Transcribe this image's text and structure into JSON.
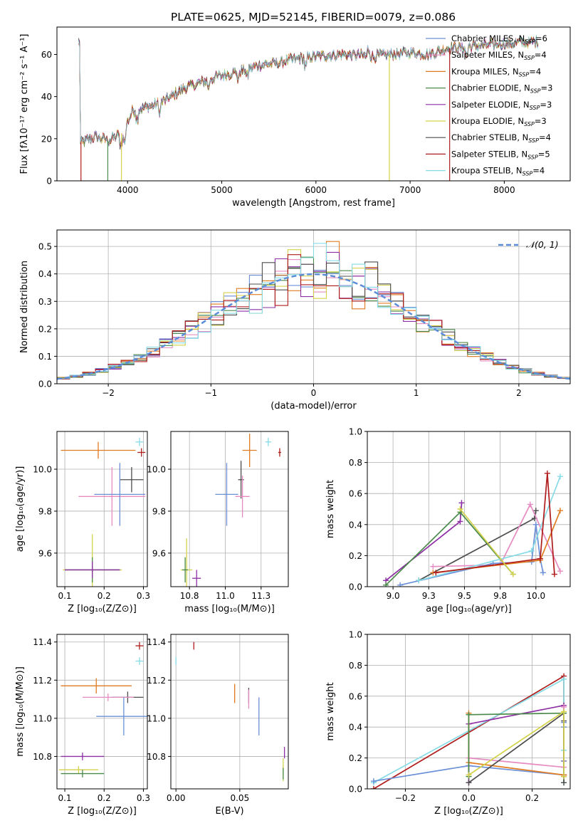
{
  "figure": {
    "title": "PLATE=0625, MJD=52145, FIBERID=0079, z=0.086"
  },
  "chart_data": [
    {
      "id": "spectrum",
      "type": "line",
      "xlabel": "wavelength [Angstrom, rest frame]",
      "ylabel": "Flux [fλ10⁻¹⁷ erg cm⁻² s⁻¹ A⁻¹]",
      "xlim": [
        3250,
        8700
      ],
      "ylim": [
        0,
        73
      ],
      "xticks": [
        4000,
        5000,
        6000,
        7000,
        8000
      ],
      "yticks": [
        0,
        20,
        40,
        60
      ],
      "grid": false,
      "legend_position": "right",
      "continuum": [
        [
          3500,
          18
        ],
        [
          3650,
          21
        ],
        [
          3800,
          19
        ],
        [
          3950,
          23
        ],
        [
          4050,
          33
        ],
        [
          4200,
          35
        ],
        [
          4400,
          38
        ],
        [
          4600,
          44
        ],
        [
          4800,
          47
        ],
        [
          5000,
          50
        ],
        [
          5200,
          52
        ],
        [
          5400,
          55
        ],
        [
          5600,
          56
        ],
        [
          5800,
          58
        ],
        [
          6000,
          59
        ],
        [
          6200,
          60
        ],
        [
          6400,
          60
        ],
        [
          6600,
          59
        ],
        [
          6800,
          60
        ],
        [
          7000,
          61
        ],
        [
          7200,
          60
        ],
        [
          7400,
          63
        ],
        [
          7700,
          64
        ],
        [
          8000,
          65
        ],
        [
          8300,
          66
        ]
      ],
      "series": [
        {
          "name": "Chabrier MILES, N",
          "sub": "SSP",
          "suffix": "=6",
          "color": "#6b8fd8"
        },
        {
          "name": "Salpeter MILES, N",
          "sub": "SSP",
          "suffix": "=4",
          "color": "#e68bc1"
        },
        {
          "name": "Kroupa MILES, N",
          "sub": "SSP",
          "suffix": "=4",
          "color": "#e07b20"
        },
        {
          "name": "Chabrier ELODIE, N",
          "sub": "SSP",
          "suffix": "=3",
          "color": "#4a8a4a"
        },
        {
          "name": "Salpeter ELODIE, N",
          "sub": "SSP",
          "suffix": "=3",
          "color": "#8e2fa6"
        },
        {
          "name": "Kroupa ELODIE, N",
          "sub": "SSP",
          "suffix": "=3",
          "color": "#d4d24a"
        },
        {
          "name": "Chabrier STELIB, N",
          "sub": "SSP",
          "suffix": "=4",
          "color": "#4d4d4d"
        },
        {
          "name": "Salpeter STELIB, N",
          "sub": "SSP",
          "suffix": "=5",
          "color": "#b01c1c"
        },
        {
          "name": "Kroupa STELIB, N",
          "sub": "SSP",
          "suffix": "=4",
          "color": "#86dbe6"
        }
      ]
    },
    {
      "id": "residuals",
      "type": "bar",
      "xlabel": "(data-model)/error",
      "ylabel": "Normed distribution",
      "xlim": [
        -2.5,
        2.5
      ],
      "ylim": [
        0,
        0.56
      ],
      "xticks": [
        -2,
        -1,
        0,
        1,
        2
      ],
      "yticks": [
        0.0,
        0.1,
        0.2,
        0.3,
        0.4,
        0.5
      ],
      "grid": true,
      "legend_position": "top-right",
      "legend": "𝒩(0, 1)",
      "reference_curve": "normal(0,1)",
      "bin_width": 0.125
    },
    {
      "id": "age_vs_Z",
      "type": "scatter",
      "xlabel": "Z [log₁₀(Z/Z⊙)]",
      "ylabel": "age  [log₁₀(age/yr)]",
      "xlim": [
        0.08,
        0.31
      ],
      "ylim": [
        9.44,
        10.18
      ],
      "xticks": [
        0.1,
        0.2,
        0.3
      ],
      "yticks": [
        9.6,
        9.8,
        10.0
      ],
      "grid": true,
      "points": [
        {
          "color": "#86dbe6",
          "x": 0.29,
          "y": 10.13,
          "xerr": 0.01,
          "yerr": 0.02
        },
        {
          "color": "#e07b20",
          "x": 0.185,
          "y": 10.09,
          "xerr": 0.095,
          "yerr": 0.04
        },
        {
          "color": "#b01c1c",
          "x": 0.295,
          "y": 10.08,
          "xerr": 0.01,
          "yerr": 0.02
        },
        {
          "color": "#4d4d4d",
          "x": 0.27,
          "y": 9.95,
          "xerr": 0.03,
          "yerr": 0.06
        },
        {
          "color": "#e68bc1",
          "x": 0.22,
          "y": 9.87,
          "xerr": 0.085,
          "yerr": 0.14
        },
        {
          "color": "#6b8fd8",
          "x": 0.24,
          "y": 9.88,
          "xerr": 0.065,
          "yerr": 0.15
        },
        {
          "color": "#d4d24a",
          "x": 0.17,
          "y": 9.52,
          "xerr": 0.075,
          "yerr": 0.17
        },
        {
          "color": "#4a8a4a",
          "x": 0.17,
          "y": 9.52,
          "xerr": 0.07,
          "yerr": 0.06
        },
        {
          "color": "#8e2fa6",
          "x": 0.17,
          "y": 9.52,
          "xerr": 0.07,
          "yerr": 0.04
        }
      ]
    },
    {
      "id": "age_vs_mass",
      "type": "scatter",
      "xlabel": "mass [log₁₀(M/M⊙)]",
      "ylabel": "",
      "xlim": [
        10.62,
        11.44
      ],
      "ylim": [
        9.44,
        10.18
      ],
      "xticks": [
        10.75,
        11.0,
        11.25
      ],
      "yticks": [
        9.6,
        9.8,
        10.0
      ],
      "grid": true,
      "points": [
        {
          "color": "#86dbe6",
          "x": 11.3,
          "y": 10.13,
          "xerr": 0.02,
          "yerr": 0.02
        },
        {
          "color": "#e07b20",
          "x": 11.17,
          "y": 10.09,
          "xerr": 0.05,
          "yerr": 0.08
        },
        {
          "color": "#b01c1c",
          "x": 11.38,
          "y": 10.08,
          "xerr": 0.01,
          "yerr": 0.02
        },
        {
          "color": "#4d4d4d",
          "x": 11.11,
          "y": 9.95,
          "xerr": 0.02,
          "yerr": 0.09
        },
        {
          "color": "#e68bc1",
          "x": 11.12,
          "y": 9.87,
          "xerr": 0.05,
          "yerr": 0.1
        },
        {
          "color": "#6b8fd8",
          "x": 11.01,
          "y": 9.88,
          "xerr": 0.08,
          "yerr": 0.15
        },
        {
          "color": "#d4d24a",
          "x": 10.73,
          "y": 9.52,
          "xerr": 0.04,
          "yerr": 0.15
        },
        {
          "color": "#4a8a4a",
          "x": 10.72,
          "y": 9.52,
          "xerr": 0.02,
          "yerr": 0.06
        },
        {
          "color": "#8e2fa6",
          "x": 10.8,
          "y": 9.48,
          "xerr": 0.03,
          "yerr": 0.04
        }
      ]
    },
    {
      "id": "mass_weight_vs_age",
      "type": "line",
      "xlabel": "age  [log₁₀(age/yr)]",
      "ylabel": "mass weight",
      "xlim": [
        8.82,
        10.24
      ],
      "ylim": [
        0,
        1
      ],
      "xticks": [
        9.0,
        9.25,
        9.5,
        9.75,
        10.0
      ],
      "yticks": [
        0.0,
        0.2,
        0.4,
        0.6,
        0.8,
        1.0
      ],
      "grid": true,
      "series": [
        {
          "color": "#8e2fa6",
          "x": [
            8.95,
            9.47,
            9.48
          ],
          "y": [
            0.04,
            0.42,
            0.54
          ]
        },
        {
          "color": "#4a8a4a",
          "x": [
            8.95,
            9.47,
            9.84
          ],
          "y": [
            0.01,
            0.48,
            0.08
          ]
        },
        {
          "color": "#4d4d4d",
          "x": [
            9.18,
            9.99,
            10.0
          ],
          "y": [
            0.04,
            0.44,
            0.49
          ]
        },
        {
          "color": "#e68bc1",
          "x": [
            9.28,
            9.75,
            9.96,
            10.17
          ],
          "y": [
            0.13,
            0.14,
            0.53,
            0.1
          ]
        },
        {
          "color": "#6b8fd8",
          "x": [
            9.05,
            9.7,
            9.97,
            10.0,
            10.03,
            10.05
          ],
          "y": [
            0.01,
            0.15,
            0.16,
            0.4,
            0.18,
            0.09
          ]
        },
        {
          "color": "#86dbe6",
          "x": [
            9.18,
            9.97,
            10.17
          ],
          "y": [
            0.04,
            0.23,
            0.71
          ]
        },
        {
          "color": "#e07b20",
          "x": [
            9.28,
            10.03,
            10.17
          ],
          "y": [
            0.09,
            0.17,
            0.49
          ]
        },
        {
          "color": "#b01c1c",
          "x": [
            9.3,
            10.03,
            10.08,
            10.13
          ],
          "y": [
            0.09,
            0.18,
            0.73,
            0.08
          ]
        },
        {
          "color": "#d4d24a",
          "x": [
            9.47,
            9.84
          ],
          "y": [
            0.5,
            0.08
          ]
        }
      ]
    },
    {
      "id": "mass_vs_Z",
      "type": "scatter",
      "xlabel": "Z [log₁₀(Z/Z⊙)]",
      "ylabel": "mass [log₁₀(M/M⊙)]",
      "xlim": [
        0.08,
        0.31
      ],
      "ylim": [
        10.63,
        11.44
      ],
      "xticks": [
        0.1,
        0.2,
        0.3
      ],
      "yticks": [
        10.8,
        11.0,
        11.2,
        11.4
      ],
      "grid": true,
      "points": [
        {
          "color": "#b01c1c",
          "x": 0.29,
          "y": 11.38,
          "xerr": 0.01,
          "yerr": 0.02
        },
        {
          "color": "#86dbe6",
          "x": 0.29,
          "y": 11.3,
          "xerr": 0.01,
          "yerr": 0.02
        },
        {
          "color": "#e07b20",
          "x": 0.18,
          "y": 11.17,
          "xerr": 0.09,
          "yerr": 0.04
        },
        {
          "color": "#4d4d4d",
          "x": 0.26,
          "y": 11.11,
          "xerr": 0.04,
          "yerr": 0.03
        },
        {
          "color": "#e68bc1",
          "x": 0.21,
          "y": 11.11,
          "xerr": 0.065,
          "yerr": 0.02
        },
        {
          "color": "#6b8fd8",
          "x": 0.25,
          "y": 11.01,
          "xerr": 0.07,
          "yerr": 0.1
        },
        {
          "color": "#8e2fa6",
          "x": 0.145,
          "y": 10.8,
          "xerr": 0.055,
          "yerr": 0.02
        },
        {
          "color": "#d4d24a",
          "x": 0.135,
          "y": 10.73,
          "xerr": 0.05,
          "yerr": 0.02
        },
        {
          "color": "#4a8a4a",
          "x": 0.145,
          "y": 10.71,
          "xerr": 0.055,
          "yerr": 0.02
        }
      ]
    },
    {
      "id": "mass_vs_ebv",
      "type": "scatter",
      "xlabel": "E(B-V)",
      "ylabel": "",
      "xlim": [
        -0.004,
        0.088
      ],
      "ylim": [
        10.63,
        11.44
      ],
      "xticks": [
        0.0,
        0.05
      ],
      "yticks": [
        10.8,
        11.0,
        11.2,
        11.4
      ],
      "grid": true,
      "points": [
        {
          "color": "#b01c1c",
          "x": 0.014,
          "y": 11.38,
          "xerr": 0,
          "yerr": 0.02
        },
        {
          "color": "#86dbe6",
          "x": 0.0,
          "y": 11.3,
          "xerr": 0,
          "yerr": 0.02
        },
        {
          "color": "#e07b20",
          "x": 0.046,
          "y": 11.13,
          "xerr": 0,
          "yerr": 0.05
        },
        {
          "color": "#4d4d4d",
          "x": 0.057,
          "y": 11.12,
          "xerr": 0,
          "yerr": 0.04
        },
        {
          "color": "#e68bc1",
          "x": 0.057,
          "y": 11.1,
          "xerr": 0,
          "yerr": 0.05
        },
        {
          "color": "#6b8fd8",
          "x": 0.065,
          "y": 11.01,
          "xerr": 0,
          "yerr": 0.1
        },
        {
          "color": "#8e2fa6",
          "x": 0.085,
          "y": 10.82,
          "xerr": 0,
          "yerr": 0.03
        },
        {
          "color": "#d4d24a",
          "x": 0.084,
          "y": 10.73,
          "xerr": 0,
          "yerr": 0.06
        },
        {
          "color": "#4a8a4a",
          "x": 0.084,
          "y": 10.71,
          "xerr": 0,
          "yerr": 0.03
        }
      ]
    },
    {
      "id": "mass_weight_vs_Z",
      "type": "line",
      "xlabel": "Z [log₁₀(Z/Z⊙)]",
      "ylabel": "mass weight",
      "xlim": [
        -0.32,
        0.32
      ],
      "ylim": [
        0,
        1
      ],
      "xticks": [
        -0.2,
        0.0,
        0.2
      ],
      "yticks": [
        0.0,
        0.2,
        0.4,
        0.6,
        0.8,
        1.0
      ],
      "grid": true,
      "series": [
        {
          "color": "#b01c1c",
          "x": [
            -0.3,
            0.3,
            0.3,
            0.3,
            0.3
          ],
          "y": [
            0.0,
            0.73,
            0.18,
            0.09,
            0.08
          ]
        },
        {
          "color": "#86dbe6",
          "x": [
            -0.3,
            0.3,
            0.3,
            0.3
          ],
          "y": [
            0.04,
            0.71,
            0.25,
            0.04
          ]
        },
        {
          "color": "#6b8fd8",
          "x": [
            -0.3,
            0.0,
            0.3,
            0.3,
            0.3,
            0.3
          ],
          "y": [
            0.05,
            0.15,
            0.09,
            0.18,
            0.4,
            0.43
          ]
        },
        {
          "color": "#8e2fa6",
          "x": [
            0.0,
            0.0,
            0.3
          ],
          "y": [
            0.04,
            0.42,
            0.54
          ]
        },
        {
          "color": "#e68bc1",
          "x": [
            0.0,
            0.3,
            0.3
          ],
          "y": [
            0.2,
            0.14,
            0.53
          ]
        },
        {
          "color": "#e07b20",
          "x": [
            0.0,
            0.0,
            0.3,
            0.3
          ],
          "y": [
            0.49,
            0.17,
            0.09,
            0.09
          ]
        },
        {
          "color": "#4d4d4d",
          "x": [
            0.0,
            0.3,
            0.3,
            0.3
          ],
          "y": [
            0.04,
            0.49,
            0.44,
            0.04
          ]
        },
        {
          "color": "#4a8a4a",
          "x": [
            0.0,
            0.0,
            0.3
          ],
          "y": [
            0.08,
            0.48,
            0.49
          ]
        },
        {
          "color": "#d4d24a",
          "x": [
            0.0,
            0.3,
            0.3
          ],
          "y": [
            0.09,
            0.5,
            0.08
          ]
        }
      ]
    }
  ]
}
